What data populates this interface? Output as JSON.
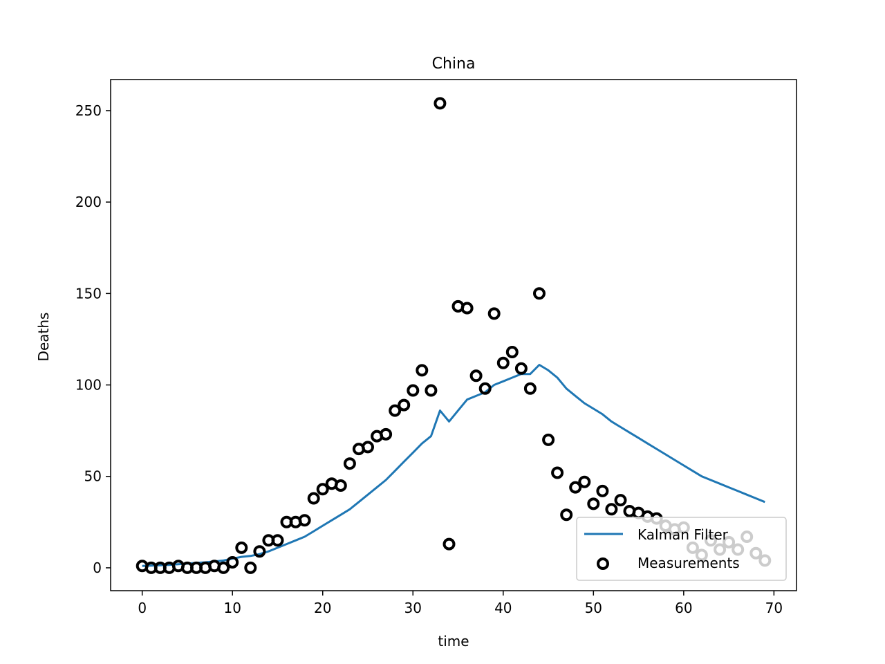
{
  "chart_data": {
    "type": "line",
    "title": "China",
    "xlabel": "time",
    "ylabel": "Deaths",
    "xlim": [
      -3.5,
      72.5
    ],
    "ylim": [
      -12.5,
      267
    ],
    "xticks": [
      0,
      10,
      20,
      30,
      40,
      50,
      60,
      70
    ],
    "yticks": [
      0,
      50,
      100,
      150,
      200,
      250
    ],
    "grid": false,
    "legend": "lower-right",
    "legend_entries": [
      "Kalman Filter",
      "Measurements"
    ],
    "series": [
      {
        "name": "Kalman Filter",
        "kind": "line",
        "color": "#1f77b4",
        "x": [
          0,
          1,
          2,
          3,
          4,
          5,
          6,
          7,
          8,
          9,
          10,
          11,
          12,
          13,
          14,
          15,
          16,
          17,
          18,
          19,
          20,
          21,
          22,
          23,
          24,
          25,
          26,
          27,
          28,
          29,
          30,
          31,
          32,
          33,
          34,
          35,
          36,
          37,
          38,
          39,
          40,
          41,
          42,
          43,
          44,
          45,
          46,
          47,
          48,
          49,
          50,
          51,
          52,
          53,
          54,
          55,
          56,
          57,
          58,
          59,
          60,
          61,
          62,
          63,
          64,
          65,
          66,
          67,
          68,
          69
        ],
        "y": [
          1,
          1.2,
          1.4,
          1.6,
          2,
          2.3,
          2.7,
          3,
          3.5,
          4,
          5,
          6,
          6.5,
          7.5,
          9,
          11,
          13,
          15,
          17,
          20,
          23,
          26,
          29,
          32,
          36,
          40,
          44,
          48,
          53,
          58,
          63,
          68,
          72,
          86,
          80,
          86,
          92,
          94,
          96,
          100,
          102,
          104,
          106,
          106,
          111,
          108,
          104,
          98,
          94,
          90,
          87,
          84,
          80,
          77,
          74,
          71,
          68,
          65,
          62,
          59,
          56,
          53,
          50,
          48,
          46,
          44,
          42,
          40,
          38,
          36
        ]
      },
      {
        "name": "Measurements",
        "kind": "scatter",
        "color": "#000000",
        "x": [
          0,
          1,
          2,
          3,
          4,
          5,
          6,
          7,
          8,
          9,
          10,
          11,
          12,
          13,
          14,
          15,
          16,
          17,
          18,
          19,
          20,
          21,
          22,
          23,
          24,
          25,
          26,
          27,
          28,
          29,
          30,
          31,
          32,
          33,
          34,
          35,
          36,
          37,
          38,
          39,
          40,
          41,
          42,
          43,
          44,
          45,
          46,
          47,
          48,
          49,
          50,
          51,
          52,
          53,
          54,
          55,
          56,
          57,
          58,
          59,
          60,
          61,
          62,
          63,
          64,
          65,
          66,
          67,
          68,
          69
        ],
        "y": [
          1,
          0,
          0,
          0,
          1,
          0,
          0,
          0,
          1,
          0,
          3,
          11,
          0,
          9,
          15,
          15,
          25,
          25,
          26,
          38,
          43,
          46,
          45,
          57,
          65,
          66,
          72,
          73,
          86,
          89,
          97,
          108,
          97,
          254,
          13,
          143,
          142,
          105,
          98,
          139,
          112,
          118,
          109,
          98,
          150,
          70,
          52,
          29,
          44,
          47,
          35,
          42,
          32,
          37,
          31,
          30,
          28,
          27,
          23,
          21,
          22,
          11,
          7,
          15,
          10,
          14,
          10,
          17,
          8,
          4
        ]
      }
    ]
  }
}
